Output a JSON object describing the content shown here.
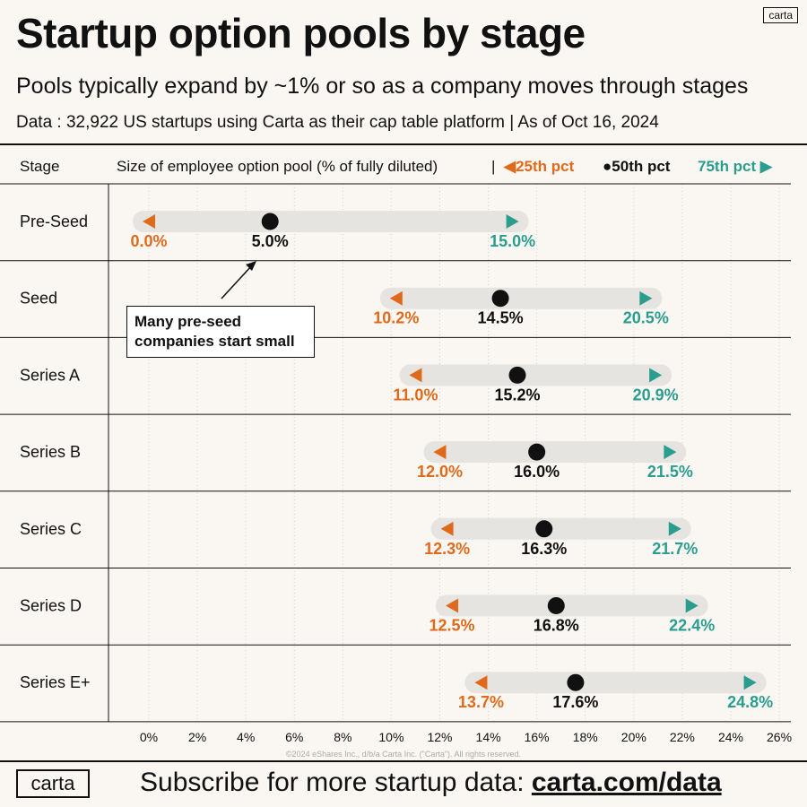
{
  "header": {
    "title": "Startup option pools by stage",
    "subtitle": "Pools typically expand by ~1% or so as a company moves through stages",
    "source": "Data : 32,922 US startups using Carta as their cap table platform  |  As of Oct 16, 2024",
    "logo_small": "carta"
  },
  "table_header": {
    "stage_label": "Stage",
    "metric_label": "Size of employee option pool (% of fully diluted)",
    "separator": "|"
  },
  "legend": {
    "p25": "25th pct",
    "p50": "50th pct",
    "p75": "75th pct"
  },
  "annotation": {
    "callout": "Many pre-seed companies start small"
  },
  "colors": {
    "p25": "#e06a1b",
    "p50": "#111111",
    "p75": "#2a9d8f",
    "bar": "#e6e4e1",
    "background": "#faf7f2"
  },
  "chart_data": {
    "type": "range-dot",
    "x_axis": {
      "ticks": [
        "0%",
        "2%",
        "4%",
        "6%",
        "8%",
        "10%",
        "12%",
        "14%",
        "16%",
        "18%",
        "20%",
        "22%",
        "24%",
        "26%"
      ],
      "range": [
        0,
        26
      ]
    },
    "grid": "vertical dotted",
    "rows": [
      {
        "stage": "Pre-Seed",
        "p25": 0.0,
        "p50": 5.0,
        "p75": 15.0,
        "p25_label": "0.0%",
        "p50_label": "5.0%",
        "p75_label": "15.0%"
      },
      {
        "stage": "Seed",
        "p25": 10.2,
        "p50": 14.5,
        "p75": 20.5,
        "p25_label": "10.2%",
        "p50_label": "14.5%",
        "p75_label": "20.5%"
      },
      {
        "stage": "Series A",
        "p25": 11.0,
        "p50": 15.2,
        "p75": 20.9,
        "p25_label": "11.0%",
        "p50_label": "15.2%",
        "p75_label": "20.9%"
      },
      {
        "stage": "Series B",
        "p25": 12.0,
        "p50": 16.0,
        "p75": 21.5,
        "p25_label": "12.0%",
        "p50_label": "16.0%",
        "p75_label": "21.5%"
      },
      {
        "stage": "Series C",
        "p25": 12.3,
        "p50": 16.3,
        "p75": 21.7,
        "p25_label": "12.3%",
        "p50_label": "16.3%",
        "p75_label": "21.7%"
      },
      {
        "stage": "Series D",
        "p25": 12.5,
        "p50": 16.8,
        "p75": 22.4,
        "p25_label": "12.5%",
        "p50_label": "16.8%",
        "p75_label": "22.4%"
      },
      {
        "stage": "Series E+",
        "p25": 13.7,
        "p50": 17.6,
        "p75": 24.8,
        "p25_label": "13.7%",
        "p50_label": "17.6%",
        "p75_label": "24.8%"
      }
    ]
  },
  "footer": {
    "copyright": "©2024 eShares Inc., d/b/a Carta Inc. (\"Carta\"). All rights reserved.",
    "logo": "carta",
    "cta_prefix": "Subscribe for more startup data: ",
    "cta_link": "carta.com/data"
  }
}
